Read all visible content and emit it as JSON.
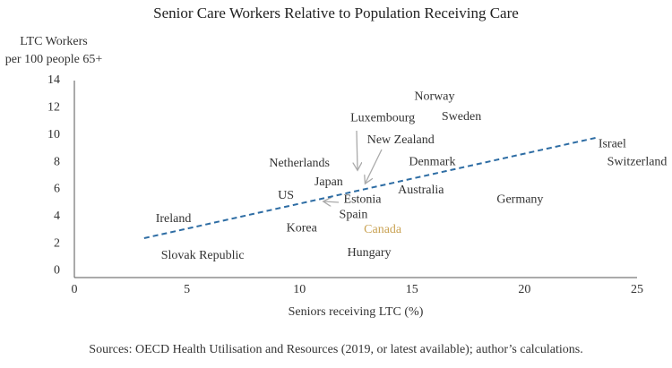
{
  "chart_data": {
    "type": "scatter",
    "title": "Senior Care Workers Relative to Population Receiving Care",
    "y_label": [
      "LTC Workers",
      "per 100 people 65+"
    ],
    "x_label": "Seniors receiving LTC (%)",
    "source": "Sources: OECD Health Utilisation and Resources (2019, or latest available); author’s calculations.",
    "labels": [
      "Norway",
      "Sweden",
      "Luxembourg",
      "New Zealand",
      "Israel",
      "Switzerland",
      "Netherlands",
      "Denmark",
      "Japan",
      "Australia",
      "US",
      "Estonia",
      "Germany",
      "Spain",
      "Ireland",
      "Korea",
      "Canada",
      "Hungary",
      "Slovak Republic"
    ],
    "x": [
      16.0,
      17.2,
      13.7,
      14.5,
      23.9,
      25.0,
      10.0,
      15.9,
      11.3,
      15.4,
      9.4,
      12.8,
      19.8,
      12.4,
      4.4,
      10.1,
      13.7,
      13.1,
      5.7
    ],
    "y": [
      12.8,
      11.3,
      11.2,
      9.6,
      9.3,
      8.0,
      7.9,
      8.0,
      6.5,
      5.9,
      5.5,
      5.2,
      5.2,
      4.1,
      3.8,
      3.1,
      3.0,
      1.3,
      1.1
    ],
    "colors": [
      "#333333",
      "#333333",
      "#333333",
      "#333333",
      "#333333",
      "#333333",
      "#333333",
      "#333333",
      "#333333",
      "#333333",
      "#333333",
      "#333333",
      "#333333",
      "#333333",
      "#333333",
      "#333333",
      "#c9a253",
      "#333333",
      "#333333"
    ],
    "trendline": {
      "x": [
        3.1,
        23.2
      ],
      "y": [
        2.4,
        9.8
      ],
      "color": "#2e6da4"
    },
    "xlim": [
      0,
      25
    ],
    "ylim": [
      -0.5,
      14
    ],
    "xticks": [
      0,
      5,
      10,
      15,
      20,
      25
    ],
    "yticks": [
      0,
      2,
      4,
      6,
      8,
      10,
      12,
      14
    ]
  }
}
